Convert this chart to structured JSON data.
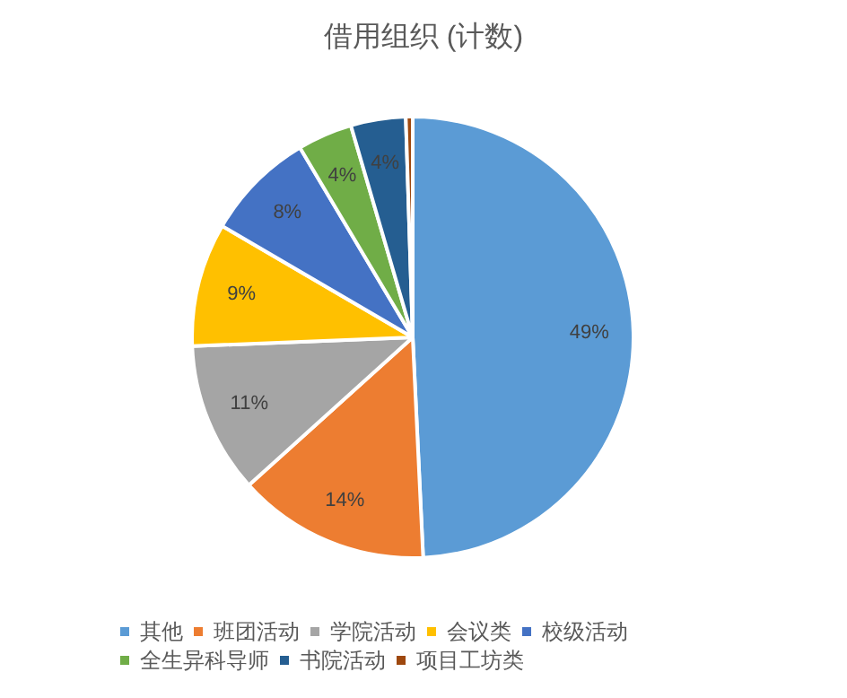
{
  "chart_data": {
    "type": "pie",
    "title": "借用组织 (计数)",
    "categories": [
      "其他",
      "班团活动",
      "学院活动",
      "会议类",
      "校级活动",
      "全生异科导师",
      "书院活动",
      "项目工坊类"
    ],
    "values": [
      49,
      14,
      11,
      9,
      8,
      4,
      4,
      0.5
    ],
    "value_labels": [
      "49%",
      "14%",
      "11%",
      "9%",
      "8%",
      "4%",
      "4%",
      null
    ],
    "colors": [
      "#5b9bd5",
      "#ed7d31",
      "#a5a5a5",
      "#ffc000",
      "#4472c4",
      "#70ad47",
      "#255e91",
      "#9e480e"
    ],
    "legend": "bottom"
  }
}
